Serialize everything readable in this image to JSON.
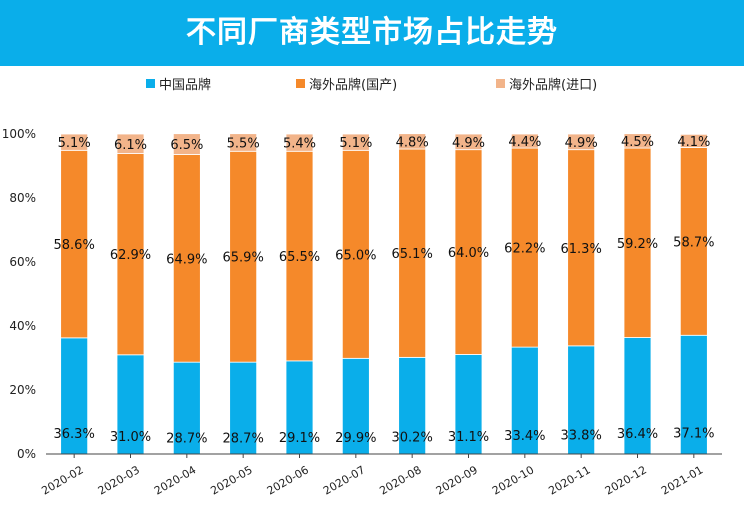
{
  "banner": {
    "title": "不同厂商类型市场占比走势"
  },
  "legend": {
    "items": [
      {
        "label": "中国品牌",
        "color": "#0aaeea"
      },
      {
        "label": "海外品牌(国产)",
        "color": "#f5892a"
      },
      {
        "label": "海外品牌(进口)",
        "color": "#f2b48a"
      }
    ]
  },
  "chart_data": {
    "type": "bar",
    "stacked": true,
    "percent": true,
    "title": "不同厂商类型市场占比走势",
    "xlabel": "",
    "ylabel": "",
    "ylim": [
      0,
      100
    ],
    "yticks": [
      "0%",
      "20%",
      "40%",
      "60%",
      "80%",
      "100%"
    ],
    "categories": [
      "2020-02",
      "2020-03",
      "2020-04",
      "2020-05",
      "2020-06",
      "2020-07",
      "2020-08",
      "2020-09",
      "2020-10",
      "2020-11",
      "2020-12",
      "2021-01"
    ],
    "legend_position": "top",
    "grid": false,
    "series": [
      {
        "name": "中国品牌",
        "color": "#0aaeea",
        "values": [
          36.3,
          31.0,
          28.7,
          28.7,
          29.1,
          29.9,
          30.2,
          31.1,
          33.4,
          33.8,
          36.4,
          37.1
        ],
        "labels": [
          "36.3%",
          "31.0%",
          "28.7%",
          "28.7%",
          "29.1%",
          "29.9%",
          "30.2%",
          "31.1%",
          "33.4%",
          "33.8%",
          "36.4%",
          "37.1%"
        ]
      },
      {
        "name": "海外品牌(国产)",
        "color": "#f5892a",
        "values": [
          58.6,
          62.9,
          64.9,
          65.9,
          65.5,
          65.0,
          65.1,
          64.0,
          62.2,
          61.3,
          59.2,
          58.7
        ],
        "labels": [
          "58.6%",
          "62.9%",
          "64.9%",
          "65.9%",
          "65.5%",
          "65.0%",
          "65.1%",
          "64.0%",
          "62.2%",
          "61.3%",
          "59.2%",
          "58.7%"
        ]
      },
      {
        "name": "海外品牌(进口)",
        "color": "#f2b48a",
        "values": [
          5.1,
          6.1,
          6.5,
          5.5,
          5.4,
          5.1,
          4.8,
          4.9,
          4.4,
          4.9,
          4.5,
          4.1
        ],
        "labels": [
          "5.1%",
          "6.1%",
          "6.5%",
          "5.5%",
          "5.4%",
          "5.1%",
          "4.8%",
          "4.9%",
          "4.4%",
          "4.9%",
          "4.5%",
          "4.1%"
        ]
      }
    ]
  }
}
